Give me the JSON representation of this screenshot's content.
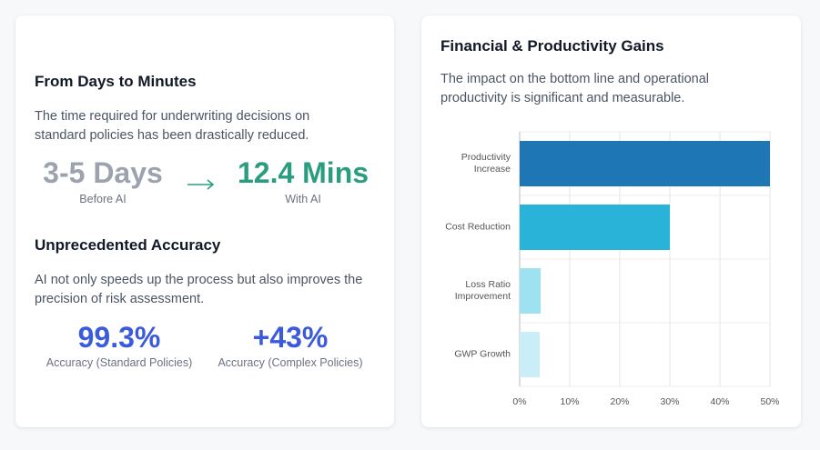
{
  "left": {
    "speed_title": "From Days to Minutes",
    "speed_text": "The time required for underwriting decisions on standard policies has been drastically reduced.",
    "before_value": "3-5 Days",
    "before_label": "Before AI",
    "after_value": "12.4 Mins",
    "after_label": "With AI",
    "accuracy_title": "Unprecedented Accuracy",
    "accuracy_text": "AI not only speeds up the process but also improves the precision of risk assessment.",
    "stat1_value": "99.3%",
    "stat1_label": "Accuracy (Standard Policies)",
    "stat2_value": "+43%",
    "stat2_label": "Accuracy (Complex Policies)"
  },
  "chart_data": {
    "type": "hbar",
    "title": "Financial & Productivity Gains",
    "subtitle": "The impact on the bottom line and operational productivity is significant and measurable.",
    "categories": [
      "Productivity Increase",
      "Cost Reduction",
      "Loss Ratio Improvement",
      "GWP Growth"
    ],
    "values": [
      50,
      30,
      4.2,
      4
    ],
    "colors": [
      "#1f76b4",
      "#29b3d9",
      "#9ee1f0",
      "#c9eef8"
    ],
    "xlim": [
      0,
      50
    ],
    "xticks": [
      {
        "value": 0,
        "label": "0%"
      },
      {
        "value": 10,
        "label": "10%"
      },
      {
        "value": 20,
        "label": "20%"
      },
      {
        "value": 30,
        "label": "30%"
      },
      {
        "value": 40,
        "label": "40%"
      },
      {
        "value": 50,
        "label": "50%"
      }
    ],
    "grid": true
  }
}
